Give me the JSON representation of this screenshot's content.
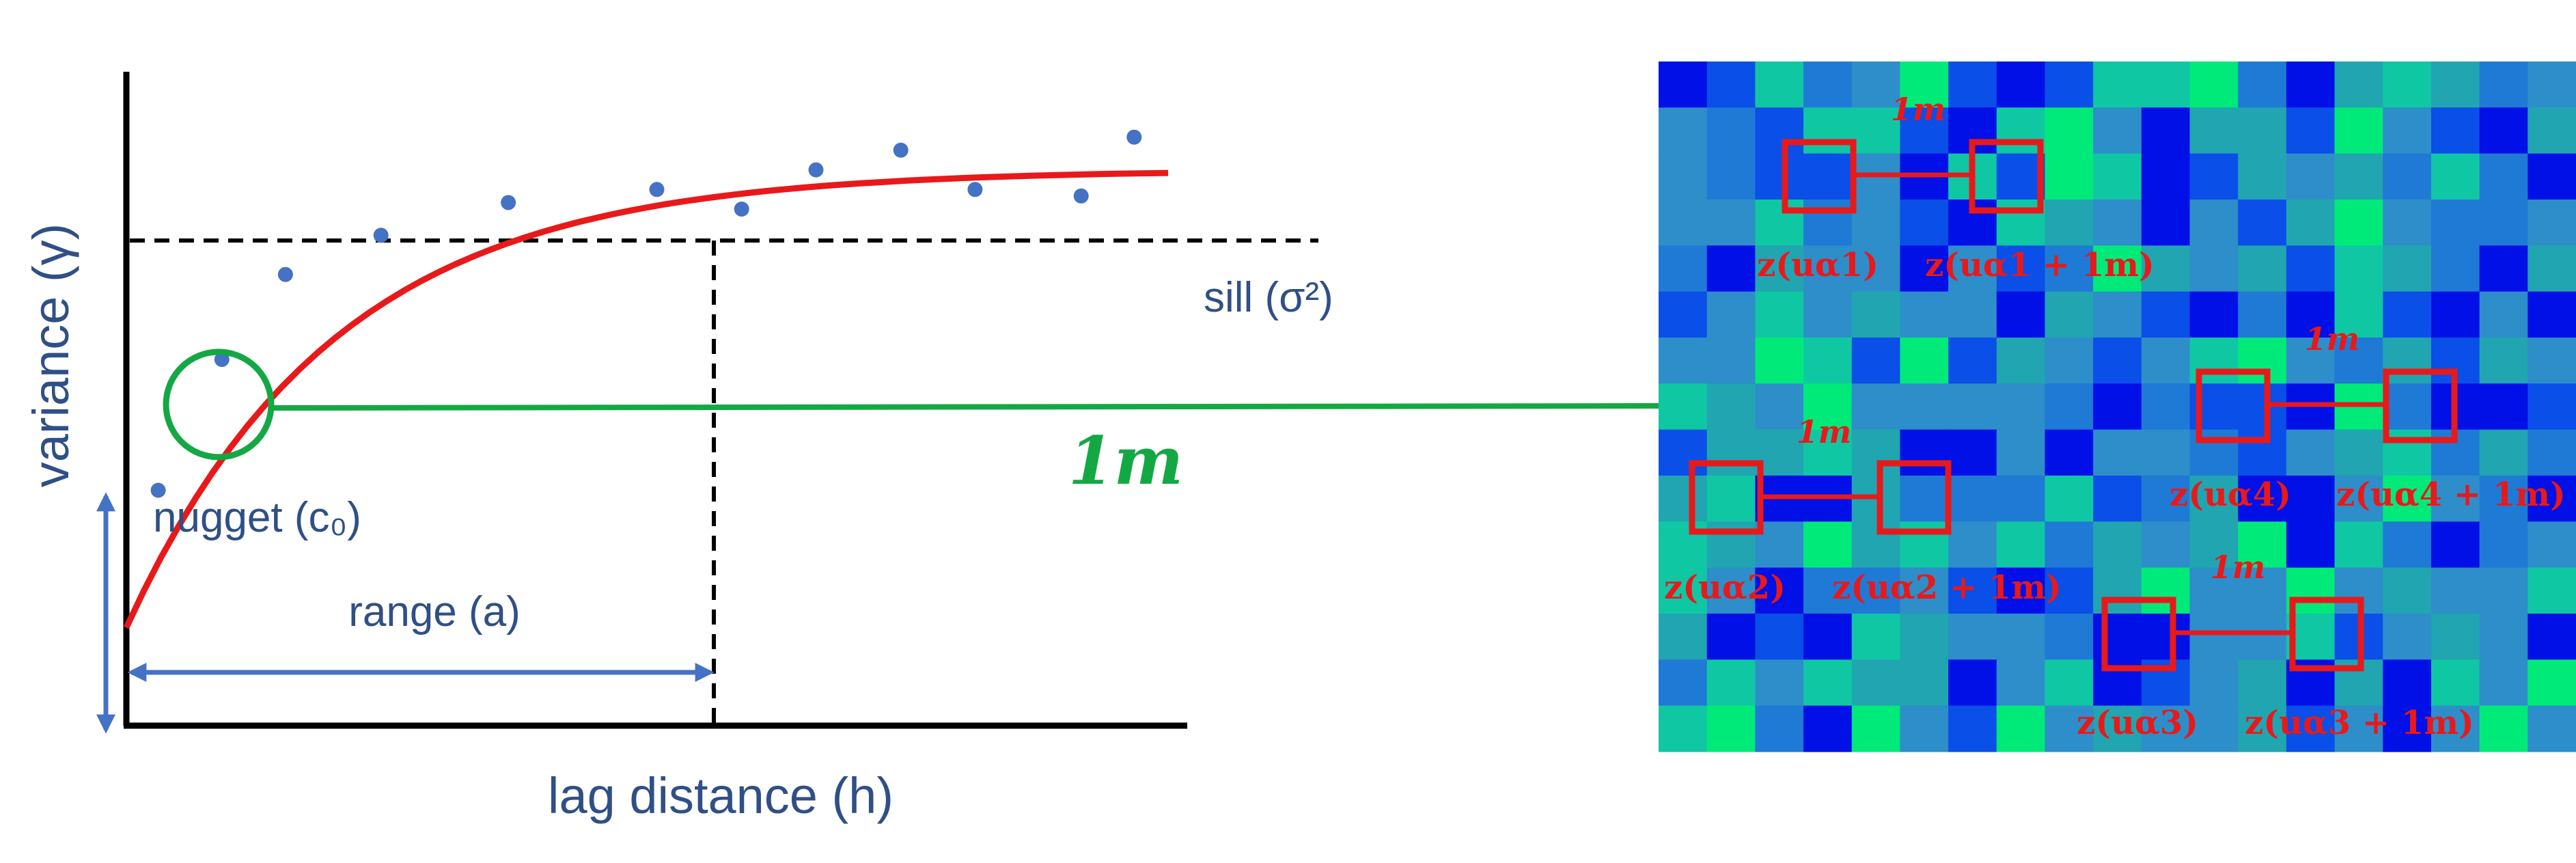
{
  "variogram": {
    "axis_y_label": "variance (γ)",
    "axis_x_label": "lag distance (h)",
    "sill_label": "sill (σ²)",
    "nugget_label": "nugget (c₀)",
    "range_label": "range (a)",
    "lag_label": "1m",
    "colors": {
      "model_curve": "#e8191a",
      "points": "#4472c4",
      "highlight": "#14a844",
      "axis": "#000000",
      "arrow": "#4472c4",
      "label": "#2f4f86"
    },
    "points": [
      {
        "h": 0.03,
        "g": 0.36
      },
      {
        "h": 0.09,
        "g": 0.56
      },
      {
        "h": 0.15,
        "g": 0.69
      },
      {
        "h": 0.24,
        "g": 0.75
      },
      {
        "h": 0.36,
        "g": 0.8
      },
      {
        "h": 0.5,
        "g": 0.82
      },
      {
        "h": 0.58,
        "g": 0.79
      },
      {
        "h": 0.65,
        "g": 0.85
      },
      {
        "h": 0.73,
        "g": 0.88
      },
      {
        "h": 0.8,
        "g": 0.82
      },
      {
        "h": 0.9,
        "g": 0.81
      },
      {
        "h": 0.95,
        "g": 0.9
      }
    ]
  },
  "grid": {
    "palette": [
      "#0010e6",
      "#0a4fe8",
      "#1f7ad6",
      "#2d8ec9",
      "#21a5b0",
      "#10c7a4",
      "#00ea7a"
    ],
    "cells": [
      "0152361015562045423",
      "3215510563044163104",
      "3211305165014342520",
      "3352310543031463223",
      "2043303126434154204",
      "1353433043102051030",
      "3365161431356324143",
      "5436333320211062001",
      "1445400303321345242",
      "4500422251240036320",
      "5436453524346052023",
      "5302231014633634335",
      "4010543320033513430",
      "2535440350134040536",
      "5620631634334130363"
    ],
    "lag_label": "1m",
    "pairs": [
      {
        "tail": "z(uα1)",
        "head": "z(uα1 + 1m)"
      },
      {
        "tail": "z(uα2)",
        "head": "z(uα2 + 1m)"
      },
      {
        "tail": "z(uα3)",
        "head": "z(uα3 + 1m)"
      },
      {
        "tail": "z(uα4)",
        "head": "z(uα4 + 1m)"
      }
    ]
  }
}
